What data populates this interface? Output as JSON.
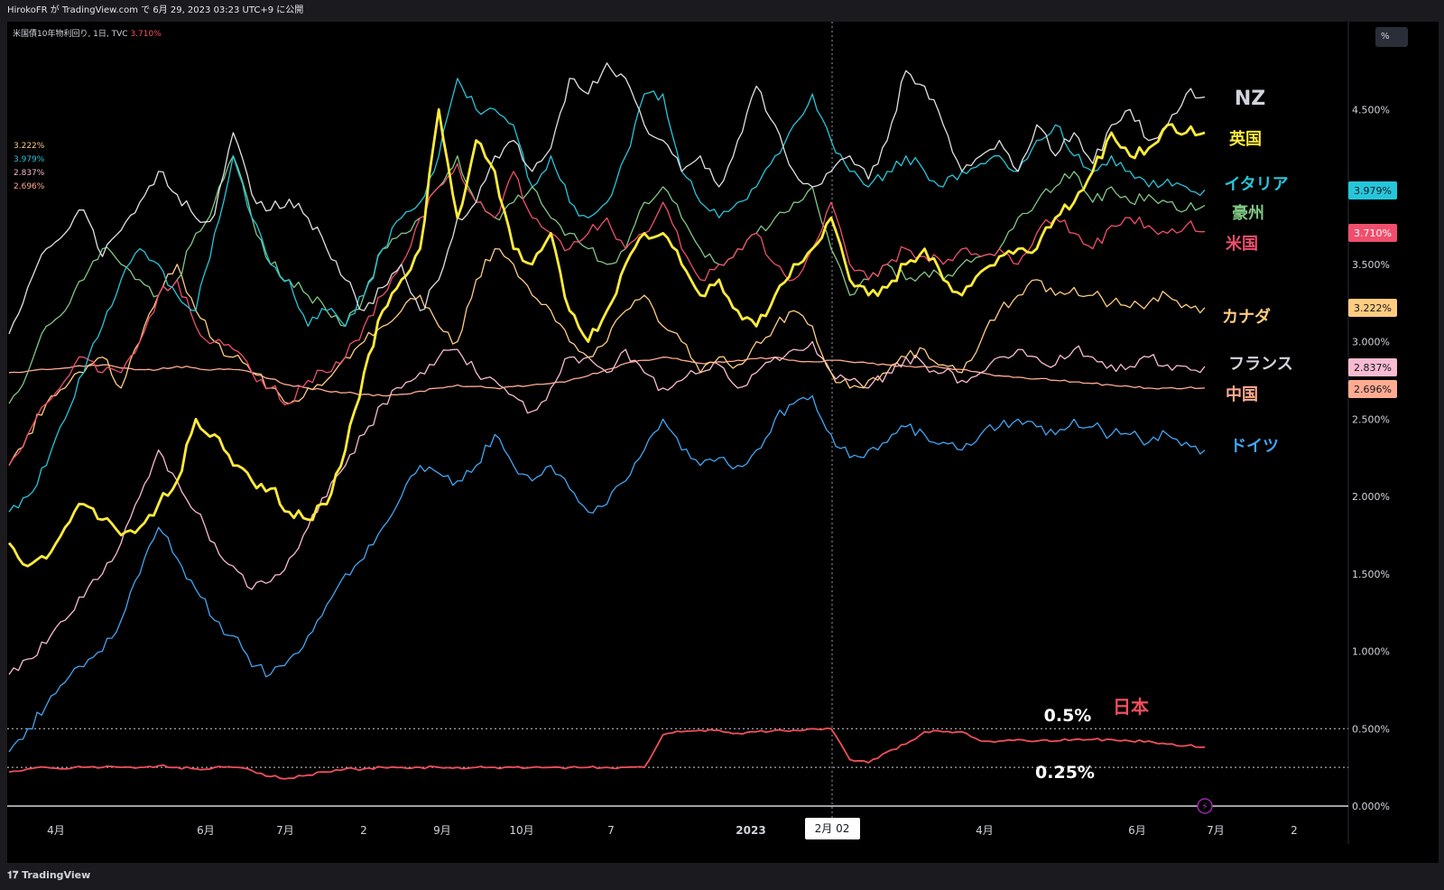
{
  "header": {
    "publish_text": "HirokoFR が TradingView.com で 6月 29, 2023 03:23 UTC+9 に公開"
  },
  "symbol": {
    "label": "米国債10年物利回り, 1日, TVC",
    "price": "3.710%"
  },
  "watch_values": [
    {
      "text": "3.222%",
      "color": "#ffcc80"
    },
    {
      "text": "3.979%",
      "color": "#26c6da"
    },
    {
      "text": "2.837%",
      "color": "#f8bbd0"
    },
    {
      "text": "2.696%",
      "color": "#ffab91"
    }
  ],
  "scale_button": "%",
  "brand": "TradingView",
  "crosshair_label": "2月 02",
  "annotations": {
    "level_05": "0.5%",
    "level_025": "0.25%"
  },
  "chart_data": {
    "type": "line",
    "yaxis_unit": "%",
    "ylim": [
      0,
      5.0
    ],
    "y_ticks": [
      "4.500%",
      "3.500%",
      "3.000%",
      "2.500%",
      "2.000%",
      "1.500%",
      "1.000%",
      "0.500%",
      "0.000%"
    ],
    "y_tick_values": [
      4.5,
      3.5,
      3.0,
      2.5,
      2.0,
      1.5,
      1.0,
      0.5,
      0.0
    ],
    "x_ticks": [
      "4月",
      "6月",
      "7月",
      "2",
      "9月",
      "10月",
      "7",
      "2023",
      "4月",
      "6月",
      "7月",
      "2"
    ],
    "series": [
      {
        "name": "NZ",
        "color": "#e0e0e0",
        "width": 1.3,
        "last": "4.58",
        "values": [
          3.05,
          3.35,
          3.6,
          3.7,
          3.85,
          3.55,
          3.72,
          3.9,
          4.1,
          3.95,
          3.8,
          3.82,
          4.35,
          3.95,
          3.85,
          3.92,
          3.8,
          3.6,
          3.4,
          3.2,
          3.35,
          3.5,
          3.2,
          3.4,
          3.8,
          3.9,
          4.2,
          4.3,
          4.1,
          4.25,
          4.7,
          4.6,
          4.8,
          4.7,
          4.4,
          4.3,
          4.1,
          4.2,
          4.0,
          4.3,
          4.65,
          4.4,
          4.1,
          4.0,
          4.1,
          4.2,
          4.05,
          4.3,
          4.75,
          4.65,
          4.4,
          4.1,
          4.2,
          4.3,
          4.1,
          4.4,
          4.2,
          4.35,
          4.15,
          4.4,
          4.5,
          4.3,
          4.4,
          4.6,
          4.58
        ]
      },
      {
        "name": "英国",
        "color": "#ffeb3b",
        "width": 2.8,
        "last": "4.35",
        "values": [
          1.7,
          1.55,
          1.6,
          1.8,
          1.95,
          1.85,
          1.75,
          1.8,
          1.95,
          2.1,
          2.5,
          2.4,
          2.2,
          2.1,
          2.05,
          1.9,
          1.85,
          1.95,
          2.3,
          2.8,
          3.2,
          3.4,
          3.6,
          4.5,
          3.8,
          4.3,
          4.1,
          3.6,
          3.5,
          3.7,
          3.2,
          3.0,
          3.2,
          3.5,
          3.7,
          3.7,
          3.5,
          3.3,
          3.4,
          3.2,
          3.1,
          3.3,
          3.5,
          3.6,
          3.8,
          3.4,
          3.3,
          3.35,
          3.5,
          3.6,
          3.4,
          3.3,
          3.45,
          3.55,
          3.6,
          3.6,
          3.8,
          3.9,
          4.1,
          4.35,
          4.2,
          4.25,
          4.4,
          4.35,
          4.35
        ]
      },
      {
        "name": "イタリア",
        "color": "#26c6da",
        "width": 1.3,
        "last": "3.979",
        "values": [
          1.9,
          2.0,
          2.2,
          2.5,
          2.8,
          3.1,
          3.4,
          3.6,
          3.5,
          3.3,
          3.2,
          3.7,
          4.2,
          3.8,
          3.5,
          3.4,
          3.1,
          3.2,
          3.1,
          3.3,
          3.6,
          3.8,
          3.9,
          4.2,
          4.7,
          4.5,
          4.5,
          4.4,
          4.0,
          4.2,
          3.9,
          3.8,
          3.9,
          4.2,
          4.6,
          4.6,
          4.1,
          3.9,
          3.8,
          3.9,
          4.0,
          4.2,
          4.4,
          4.6,
          4.3,
          4.1,
          4.0,
          4.1,
          4.2,
          4.1,
          4.0,
          4.1,
          4.15,
          4.2,
          4.1,
          4.3,
          4.4,
          4.2,
          4.1,
          4.2,
          4.1,
          4.0,
          4.05,
          4.0,
          3.98
        ]
      },
      {
        "name": "豪州",
        "color": "#81c784",
        "width": 1.3,
        "last": "3.88",
        "values": [
          2.6,
          2.8,
          3.1,
          3.2,
          3.4,
          3.6,
          3.5,
          3.4,
          3.3,
          3.4,
          3.7,
          3.9,
          4.2,
          3.8,
          3.5,
          3.4,
          3.3,
          3.2,
          3.1,
          3.3,
          3.6,
          3.7,
          3.8,
          4.0,
          4.2,
          3.9,
          3.8,
          3.9,
          4.0,
          3.8,
          3.7,
          3.6,
          3.5,
          3.6,
          3.9,
          4.0,
          3.8,
          3.6,
          3.5,
          3.6,
          3.7,
          3.8,
          3.9,
          4.0,
          3.6,
          3.3,
          3.4,
          3.5,
          3.4,
          3.45,
          3.4,
          3.5,
          3.55,
          3.6,
          3.8,
          3.9,
          4.0,
          4.1,
          3.9,
          4.0,
          3.9,
          3.95,
          3.9,
          3.85,
          3.88
        ]
      },
      {
        "name": "米国",
        "color": "#f04e6c",
        "width": 1.3,
        "last": "3.710",
        "values": [
          2.2,
          2.4,
          2.6,
          2.75,
          2.9,
          2.8,
          2.8,
          3.0,
          3.3,
          3.4,
          3.1,
          3.0,
          2.95,
          2.8,
          2.7,
          2.6,
          2.75,
          2.8,
          2.9,
          3.1,
          3.3,
          3.5,
          3.8,
          4.0,
          4.15,
          3.9,
          3.8,
          4.1,
          3.8,
          3.7,
          3.6,
          3.7,
          3.8,
          3.6,
          3.7,
          3.9,
          3.6,
          3.4,
          3.5,
          3.6,
          3.7,
          3.5,
          3.4,
          3.6,
          3.9,
          3.5,
          3.4,
          3.5,
          3.6,
          3.55,
          3.5,
          3.6,
          3.55,
          3.6,
          3.5,
          3.7,
          3.8,
          3.7,
          3.6,
          3.75,
          3.8,
          3.75,
          3.7,
          3.75,
          3.71
        ]
      },
      {
        "name": "カナダ",
        "color": "#ffcc80",
        "width": 1.3,
        "last": "3.222",
        "values": [
          2.2,
          2.4,
          2.6,
          2.7,
          2.8,
          2.9,
          2.7,
          3.0,
          3.3,
          3.5,
          3.2,
          3.0,
          2.9,
          2.8,
          2.7,
          2.6,
          2.7,
          2.75,
          2.9,
          3.0,
          3.1,
          3.2,
          3.3,
          3.1,
          3.0,
          3.4,
          3.6,
          3.5,
          3.3,
          3.2,
          3.0,
          2.9,
          3.0,
          3.2,
          3.3,
          3.1,
          3.0,
          2.8,
          2.9,
          2.85,
          3.0,
          3.1,
          3.2,
          3.1,
          2.8,
          2.7,
          2.75,
          2.8,
          2.9,
          2.95,
          2.85,
          2.8,
          3.0,
          3.2,
          3.3,
          3.4,
          3.3,
          3.35,
          3.3,
          3.25,
          3.22,
          3.25,
          3.3,
          3.24,
          3.22
        ]
      },
      {
        "name": "フランス",
        "color": "#f8bbd0",
        "width": 1.3,
        "last": "2.837",
        "values": [
          0.85,
          0.95,
          1.05,
          1.2,
          1.35,
          1.5,
          1.7,
          2.0,
          2.3,
          2.1,
          1.9,
          1.7,
          1.55,
          1.4,
          1.45,
          1.6,
          1.8,
          2.0,
          2.2,
          2.4,
          2.6,
          2.7,
          2.8,
          2.9,
          2.95,
          2.8,
          2.75,
          2.65,
          2.55,
          2.7,
          2.9,
          2.9,
          2.8,
          2.95,
          2.8,
          2.7,
          2.75,
          2.8,
          2.85,
          2.7,
          2.8,
          2.9,
          2.95,
          3.0,
          2.8,
          2.75,
          2.7,
          2.8,
          2.9,
          2.85,
          2.8,
          2.75,
          2.8,
          2.9,
          2.95,
          2.9,
          2.85,
          2.95,
          2.9,
          2.85,
          2.84,
          2.9,
          2.85,
          2.84,
          2.84
        ]
      },
      {
        "name": "中国",
        "color": "#ffab91",
        "width": 1.3,
        "last": "2.696",
        "values": [
          2.8,
          2.81,
          2.82,
          2.83,
          2.84,
          2.85,
          2.83,
          2.82,
          2.82,
          2.84,
          2.83,
          2.82,
          2.82,
          2.8,
          2.76,
          2.72,
          2.7,
          2.68,
          2.67,
          2.66,
          2.65,
          2.66,
          2.68,
          2.7,
          2.72,
          2.71,
          2.7,
          2.71,
          2.72,
          2.73,
          2.75,
          2.78,
          2.82,
          2.86,
          2.88,
          2.9,
          2.88,
          2.86,
          2.87,
          2.88,
          2.89,
          2.9,
          2.88,
          2.87,
          2.88,
          2.87,
          2.86,
          2.85,
          2.84,
          2.84,
          2.83,
          2.82,
          2.8,
          2.78,
          2.77,
          2.76,
          2.75,
          2.74,
          2.73,
          2.72,
          2.71,
          2.7,
          2.7,
          2.7,
          2.7
        ]
      },
      {
        "name": "ドイツ",
        "color": "#42a5f5",
        "width": 1.3,
        "last": "2.30",
        "values": [
          0.35,
          0.5,
          0.65,
          0.8,
          0.9,
          1.0,
          1.2,
          1.5,
          1.8,
          1.6,
          1.4,
          1.2,
          1.1,
          0.9,
          0.85,
          0.95,
          1.1,
          1.3,
          1.5,
          1.6,
          1.8,
          2.0,
          2.2,
          2.15,
          2.1,
          2.2,
          2.4,
          2.2,
          2.1,
          2.2,
          2.05,
          1.9,
          1.95,
          2.1,
          2.3,
          2.5,
          2.3,
          2.2,
          2.25,
          2.2,
          2.3,
          2.5,
          2.6,
          2.65,
          2.4,
          2.25,
          2.3,
          2.35,
          2.45,
          2.4,
          2.35,
          2.3,
          2.4,
          2.45,
          2.5,
          2.45,
          2.4,
          2.5,
          2.45,
          2.4,
          2.4,
          2.35,
          2.4,
          2.35,
          2.3
        ]
      },
      {
        "name": "日本",
        "color": "#f04e5c",
        "width": 1.8,
        "last": "0.38",
        "values": [
          0.22,
          0.24,
          0.25,
          0.24,
          0.25,
          0.25,
          0.25,
          0.25,
          0.26,
          0.25,
          0.24,
          0.25,
          0.25,
          0.23,
          0.19,
          0.18,
          0.2,
          0.22,
          0.24,
          0.24,
          0.25,
          0.25,
          0.25,
          0.25,
          0.25,
          0.25,
          0.25,
          0.25,
          0.25,
          0.25,
          0.25,
          0.25,
          0.25,
          0.25,
          0.25,
          0.46,
          0.48,
          0.49,
          0.49,
          0.47,
          0.48,
          0.49,
          0.49,
          0.5,
          0.5,
          0.3,
          0.28,
          0.35,
          0.4,
          0.48,
          0.48,
          0.48,
          0.42,
          0.42,
          0.43,
          0.42,
          0.42,
          0.43,
          0.43,
          0.43,
          0.42,
          0.42,
          0.4,
          0.39,
          0.38
        ]
      }
    ],
    "right_labels": [
      {
        "series": "NZ",
        "text": "NZ"
      },
      {
        "series": "英国",
        "text": "英国"
      },
      {
        "series": "イタリア",
        "text": "イタリア"
      },
      {
        "series": "豪州",
        "text": "豪州"
      },
      {
        "series": "米国",
        "text": "米国"
      },
      {
        "series": "カナダ",
        "text": "カナダ"
      },
      {
        "series": "フランス",
        "text": "フランス"
      },
      {
        "series": "中国",
        "text": "中国"
      },
      {
        "series": "ドイツ",
        "text": "ドイツ"
      },
      {
        "series": "日本",
        "text": "日本"
      }
    ],
    "price_tags": [
      {
        "text": "3.979%",
        "color": "#26c6da",
        "value": 3.979
      },
      {
        "text": "3.710%",
        "color": "#f04e6c",
        "value": 3.71
      },
      {
        "text": "3.222%",
        "color": "#ffcc80",
        "value": 3.222
      },
      {
        "text": "2.837%",
        "color": "#f8bbd0",
        "value": 2.837
      },
      {
        "text": "2.696%",
        "color": "#ffab91",
        "value": 2.696
      }
    ],
    "reference_lines": [
      0.5,
      0.25
    ]
  }
}
